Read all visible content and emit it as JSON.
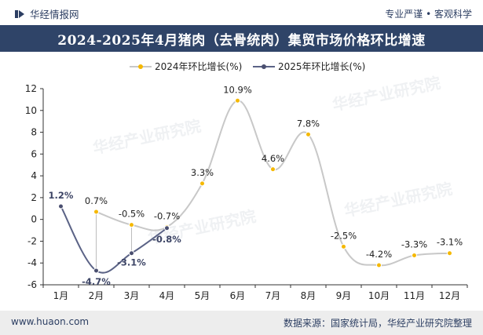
{
  "header": {
    "brand": "华经情报网",
    "tagline": "专业严谨 • 客观科学",
    "title": "2024-2025年4月猪肉（去骨统肉）集贸市场价格环比增速"
  },
  "footer": {
    "site": "www.huaon.com",
    "source": "数据来源：国家统计局，华经产业研究院整理"
  },
  "watermark": "华经产业研究院",
  "colors": {
    "series_2024_line": "#c8c8c8",
    "series_2024_marker": "#f5b800",
    "series_2025_line": "#5b6386",
    "series_2025_marker": "#4a4f70",
    "title_bg": "#2f4468",
    "footer_bg": "#ededed"
  },
  "chart_data": {
    "type": "line",
    "categories": [
      "1月",
      "2月",
      "3月",
      "4月",
      "5月",
      "6月",
      "7月",
      "8月",
      "9月",
      "10月",
      "11月",
      "12月"
    ],
    "series": [
      {
        "name": "2024年环比增长(%)",
        "values": [
          null,
          0.7,
          -0.5,
          -0.7,
          3.3,
          10.9,
          4.6,
          7.8,
          -2.5,
          -4.2,
          -3.3,
          -3.1
        ],
        "labels": [
          "",
          "0.7%",
          "-0.5%",
          "-0.7%",
          "3.3%",
          "10.9%",
          "4.6%",
          "7.8%",
          "-2.5%",
          "-4.2%",
          "-3.3%",
          "-3.1%"
        ]
      },
      {
        "name": "2025年环比增长(%)",
        "values": [
          1.2,
          -4.7,
          -3.1,
          -0.8,
          null,
          null,
          null,
          null,
          null,
          null,
          null,
          null
        ],
        "labels": [
          "1.2%",
          "-4.7%",
          "-3.1%",
          "-0.8%",
          "",
          "",
          "",
          "",
          "",
          "",
          "",
          ""
        ]
      }
    ],
    "ylim": [
      -6,
      12
    ],
    "yticks": [
      "-6",
      "-4",
      "-2",
      "0",
      "2",
      "4",
      "6",
      "8",
      "10",
      "12"
    ],
    "grid": false,
    "legend_position": "top"
  }
}
